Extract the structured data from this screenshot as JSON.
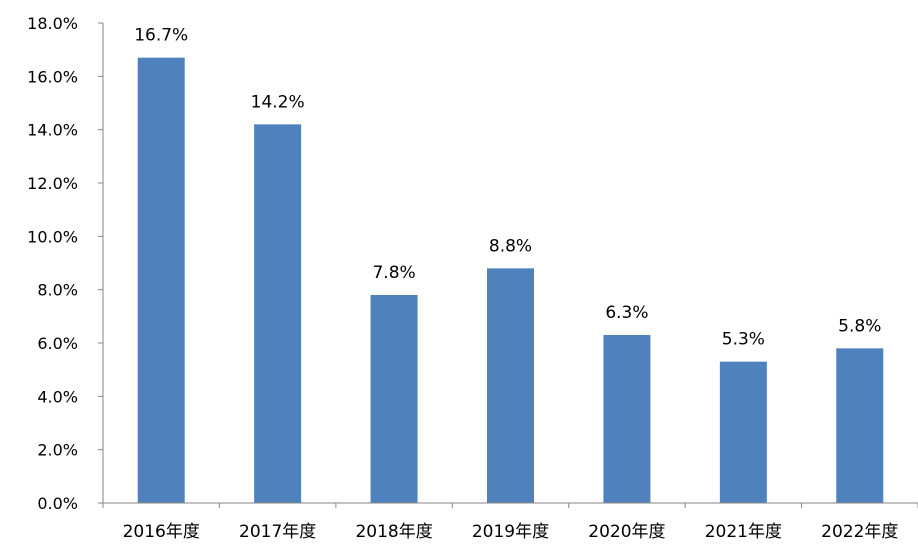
{
  "chart_data": {
    "type": "bar",
    "title": "",
    "xlabel": "",
    "ylabel": "",
    "categories": [
      "2016年度",
      "2017年度",
      "2018年度",
      "2019年度",
      "2020年度",
      "2021年度",
      "2022年度"
    ],
    "values": [
      16.7,
      14.2,
      7.8,
      8.8,
      6.3,
      5.3,
      5.8
    ],
    "data_labels": [
      "16.7%",
      "14.2%",
      "7.8%",
      "8.8%",
      "6.3%",
      "5.3%",
      "5.8%"
    ],
    "ylim": [
      0,
      18
    ],
    "yticks": [
      0,
      2,
      4,
      6,
      8,
      10,
      12,
      14,
      16,
      18
    ],
    "ytick_labels": [
      "0.0%",
      "2.0%",
      "4.0%",
      "6.0%",
      "8.0%",
      "10.0%",
      "12.0%",
      "14.0%",
      "16.0%",
      "18.0%"
    ],
    "grid": false,
    "legend": "none",
    "bar_color": "#4F81BD",
    "axis_color": "#868686"
  }
}
